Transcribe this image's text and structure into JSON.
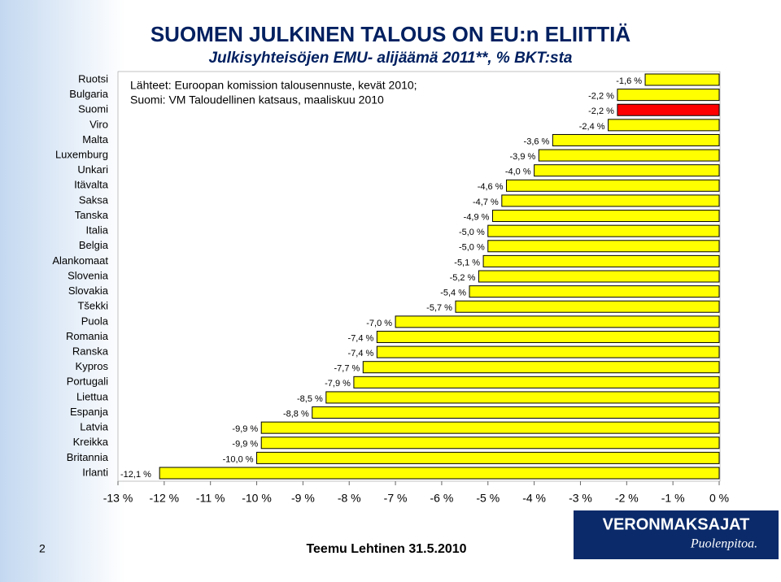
{
  "chart_data": {
    "type": "bar",
    "orientation": "horizontal",
    "title": "SUOMEN JULKINEN TALOUS ON EU:n ELIITTIÄ",
    "subtitle": "Julkisyhteisöjen EMU- alijäämä 2011**, % BKT:sta",
    "source": [
      "Lähteet: Euroopan komission talousennuste, kevät 2010;",
      "Suomi: VM Taloudellinen katsaus, maaliskuu 2010"
    ],
    "categories": [
      "Ruotsi",
      "Bulgaria",
      "Suomi",
      "Viro",
      "Malta",
      "Luxemburg",
      "Unkari",
      "Itävalta",
      "Saksa",
      "Tanska",
      "Italia",
      "Belgia",
      "Alankomaat",
      "Slovenia",
      "Slovakia",
      "Tšekki",
      "Puola",
      "Romania",
      "Ranska",
      "Kypros",
      "Portugali",
      "Liettua",
      "Espanja",
      "Latvia",
      "Kreikka",
      "Britannia",
      "Irlanti"
    ],
    "values": [
      -1.6,
      -2.2,
      -2.2,
      -2.4,
      -3.6,
      -3.9,
      -4.0,
      -4.6,
      -4.7,
      -4.9,
      -5.0,
      -5.0,
      -5.1,
      -5.2,
      -5.4,
      -5.7,
      -7.0,
      -7.4,
      -7.4,
      -7.7,
      -7.9,
      -8.5,
      -8.8,
      -9.9,
      -9.9,
      -10.0,
      -12.1
    ],
    "value_labels": [
      "-1,6 %",
      "-2,2 %",
      "-2,2 %",
      "-2,4 %",
      "-3,6 %",
      "-3,9 %",
      "-4,0 %",
      "-4,6 %",
      "-4,7 %",
      "-4,9 %",
      "-5,0 %",
      "-5,0 %",
      "-5,1 %",
      "-5,2 %",
      "-5,4 %",
      "-5,7 %",
      "-7,0 %",
      "-7,4 %",
      "-7,4 %",
      "-7,7 %",
      "-7,9 %",
      "-8,5 %",
      "-8,8 %",
      "-9,9 %",
      "-9,9 %",
      "-10,0 %",
      "-12,1 %"
    ],
    "colors": [
      "#ffff00",
      "#ffff00",
      "#ff0000",
      "#ffff00",
      "#ffff00",
      "#ffff00",
      "#ffff00",
      "#ffff00",
      "#ffff00",
      "#ffff00",
      "#ffff00",
      "#ffff00",
      "#ffff00",
      "#ffff00",
      "#ffff00",
      "#ffff00",
      "#ffff00",
      "#ffff00",
      "#ffff00",
      "#ffff00",
      "#ffff00",
      "#ffff00",
      "#ffff00",
      "#ffff00",
      "#ffff00",
      "#ffff00",
      "#ffff00"
    ],
    "xlim": [
      -13,
      0
    ],
    "xticks": [
      {
        "value": -13,
        "label": "-13 %"
      },
      {
        "value": -12,
        "label": "-12 %"
      },
      {
        "value": -11,
        "label": "-11 %"
      },
      {
        "value": -10,
        "label": "-10 %"
      },
      {
        "value": -9,
        "label": "-9 %"
      },
      {
        "value": -8,
        "label": "-8 %"
      },
      {
        "value": -7,
        "label": "-7 %"
      },
      {
        "value": -6,
        "label": "-6 %"
      },
      {
        "value": -5,
        "label": "-5 %"
      },
      {
        "value": -4,
        "label": "-4 %"
      },
      {
        "value": -3,
        "label": "-3 %"
      },
      {
        "value": -2,
        "label": "-2 %"
      },
      {
        "value": -1,
        "label": "-1 %"
      },
      {
        "value": 0,
        "label": "0 %"
      }
    ]
  },
  "footer": {
    "page": "2",
    "author": "Teemu Lehtinen 31.5.2010",
    "logo": "VERONMAKSAJAT",
    "logo_tagline": "Puolenpitoa."
  }
}
